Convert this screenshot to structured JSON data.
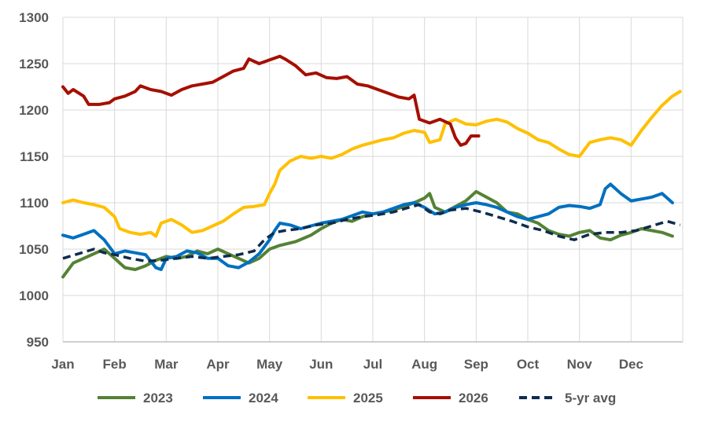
{
  "chart_data": {
    "type": "line",
    "title": "",
    "xlabel": "",
    "ylabel": "",
    "ylim": [
      950,
      1300
    ],
    "yticks": [
      950,
      1000,
      1050,
      1100,
      1150,
      1200,
      1250,
      1300
    ],
    "months": [
      "Jan",
      "Feb",
      "Mar",
      "Apr",
      "May",
      "Jun",
      "Jul",
      "Aug",
      "Sep",
      "Oct",
      "Nov",
      "Dec"
    ],
    "grid": true,
    "legend_position": "bottom",
    "series": [
      {
        "name": "2023",
        "color": "#548235",
        "dash": false,
        "points": [
          [
            0,
            1020
          ],
          [
            0.2,
            1035
          ],
          [
            0.4,
            1040
          ],
          [
            0.6,
            1045
          ],
          [
            0.8,
            1050
          ],
          [
            1.0,
            1040
          ],
          [
            1.2,
            1030
          ],
          [
            1.4,
            1028
          ],
          [
            1.6,
            1032
          ],
          [
            1.8,
            1038
          ],
          [
            2.0,
            1042
          ],
          [
            2.2,
            1040
          ],
          [
            2.4,
            1042
          ],
          [
            2.6,
            1048
          ],
          [
            2.8,
            1045
          ],
          [
            3.0,
            1050
          ],
          [
            3.2,
            1045
          ],
          [
            3.4,
            1040
          ],
          [
            3.6,
            1035
          ],
          [
            3.8,
            1040
          ],
          [
            4.0,
            1050
          ],
          [
            4.2,
            1054
          ],
          [
            4.5,
            1058
          ],
          [
            4.8,
            1065
          ],
          [
            5.0,
            1072
          ],
          [
            5.2,
            1078
          ],
          [
            5.4,
            1082
          ],
          [
            5.6,
            1080
          ],
          [
            5.8,
            1085
          ],
          [
            6.0,
            1088
          ],
          [
            6.2,
            1090
          ],
          [
            6.4,
            1092
          ],
          [
            6.6,
            1096
          ],
          [
            6.8,
            1100
          ],
          [
            7.0,
            1105
          ],
          [
            7.1,
            1110
          ],
          [
            7.2,
            1095
          ],
          [
            7.4,
            1090
          ],
          [
            7.6,
            1096
          ],
          [
            7.8,
            1102
          ],
          [
            8.0,
            1112
          ],
          [
            8.2,
            1106
          ],
          [
            8.4,
            1100
          ],
          [
            8.6,
            1090
          ],
          [
            8.8,
            1088
          ],
          [
            9.0,
            1082
          ],
          [
            9.2,
            1078
          ],
          [
            9.4,
            1070
          ],
          [
            9.6,
            1066
          ],
          [
            9.8,
            1064
          ],
          [
            10.0,
            1068
          ],
          [
            10.2,
            1070
          ],
          [
            10.4,
            1062
          ],
          [
            10.6,
            1060
          ],
          [
            10.8,
            1065
          ],
          [
            11.0,
            1068
          ],
          [
            11.2,
            1072
          ],
          [
            11.4,
            1070
          ],
          [
            11.6,
            1068
          ],
          [
            11.8,
            1064
          ]
        ]
      },
      {
        "name": "2024",
        "color": "#0070C0",
        "dash": false,
        "points": [
          [
            0,
            1065
          ],
          [
            0.2,
            1062
          ],
          [
            0.4,
            1066
          ],
          [
            0.6,
            1070
          ],
          [
            0.8,
            1060
          ],
          [
            1.0,
            1045
          ],
          [
            1.2,
            1048
          ],
          [
            1.4,
            1046
          ],
          [
            1.6,
            1044
          ],
          [
            1.8,
            1030
          ],
          [
            1.9,
            1028
          ],
          [
            2.0,
            1040
          ],
          [
            2.2,
            1042
          ],
          [
            2.4,
            1048
          ],
          [
            2.6,
            1046
          ],
          [
            2.8,
            1040
          ],
          [
            3.0,
            1040
          ],
          [
            3.2,
            1032
          ],
          [
            3.4,
            1030
          ],
          [
            3.6,
            1036
          ],
          [
            3.8,
            1045
          ],
          [
            4.0,
            1060
          ],
          [
            4.1,
            1070
          ],
          [
            4.2,
            1078
          ],
          [
            4.4,
            1076
          ],
          [
            4.6,
            1072
          ],
          [
            4.8,
            1075
          ],
          [
            5.0,
            1078
          ],
          [
            5.2,
            1080
          ],
          [
            5.4,
            1082
          ],
          [
            5.6,
            1086
          ],
          [
            5.8,
            1090
          ],
          [
            6.0,
            1088
          ],
          [
            6.2,
            1090
          ],
          [
            6.4,
            1094
          ],
          [
            6.6,
            1098
          ],
          [
            6.8,
            1100
          ],
          [
            7.0,
            1095
          ],
          [
            7.2,
            1088
          ],
          [
            7.4,
            1090
          ],
          [
            7.6,
            1095
          ],
          [
            7.8,
            1098
          ],
          [
            8.0,
            1100
          ],
          [
            8.2,
            1098
          ],
          [
            8.4,
            1095
          ],
          [
            8.6,
            1090
          ],
          [
            8.8,
            1085
          ],
          [
            9.0,
            1082
          ],
          [
            9.2,
            1085
          ],
          [
            9.4,
            1088
          ],
          [
            9.6,
            1095
          ],
          [
            9.8,
            1097
          ],
          [
            10.0,
            1096
          ],
          [
            10.2,
            1094
          ],
          [
            10.4,
            1098
          ],
          [
            10.5,
            1115
          ],
          [
            10.6,
            1120
          ],
          [
            10.8,
            1110
          ],
          [
            11.0,
            1102
          ],
          [
            11.2,
            1104
          ],
          [
            11.4,
            1106
          ],
          [
            11.6,
            1110
          ],
          [
            11.8,
            1100
          ]
        ]
      },
      {
        "name": "2025",
        "color": "#FFC000",
        "dash": false,
        "points": [
          [
            0,
            1100
          ],
          [
            0.2,
            1103
          ],
          [
            0.4,
            1100
          ],
          [
            0.6,
            1098
          ],
          [
            0.8,
            1095
          ],
          [
            1.0,
            1085
          ],
          [
            1.1,
            1072
          ],
          [
            1.3,
            1068
          ],
          [
            1.5,
            1066
          ],
          [
            1.7,
            1068
          ],
          [
            1.8,
            1064
          ],
          [
            1.9,
            1078
          ],
          [
            2.1,
            1082
          ],
          [
            2.3,
            1076
          ],
          [
            2.5,
            1068
          ],
          [
            2.7,
            1070
          ],
          [
            2.9,
            1075
          ],
          [
            3.1,
            1080
          ],
          [
            3.3,
            1088
          ],
          [
            3.5,
            1095
          ],
          [
            3.7,
            1096
          ],
          [
            3.9,
            1098
          ],
          [
            4.0,
            1110
          ],
          [
            4.1,
            1120
          ],
          [
            4.2,
            1135
          ],
          [
            4.4,
            1145
          ],
          [
            4.6,
            1150
          ],
          [
            4.8,
            1148
          ],
          [
            5.0,
            1150
          ],
          [
            5.2,
            1148
          ],
          [
            5.4,
            1152
          ],
          [
            5.6,
            1158
          ],
          [
            5.8,
            1162
          ],
          [
            6.0,
            1165
          ],
          [
            6.2,
            1168
          ],
          [
            6.4,
            1170
          ],
          [
            6.6,
            1175
          ],
          [
            6.8,
            1178
          ],
          [
            7.0,
            1176
          ],
          [
            7.1,
            1165
          ],
          [
            7.3,
            1168
          ],
          [
            7.4,
            1185
          ],
          [
            7.6,
            1190
          ],
          [
            7.8,
            1185
          ],
          [
            8.0,
            1184
          ],
          [
            8.2,
            1188
          ],
          [
            8.4,
            1190
          ],
          [
            8.6,
            1187
          ],
          [
            8.8,
            1180
          ],
          [
            9.0,
            1175
          ],
          [
            9.2,
            1168
          ],
          [
            9.4,
            1165
          ],
          [
            9.6,
            1158
          ],
          [
            9.8,
            1152
          ],
          [
            10.0,
            1150
          ],
          [
            10.2,
            1165
          ],
          [
            10.4,
            1168
          ],
          [
            10.6,
            1170
          ],
          [
            10.8,
            1168
          ],
          [
            11.0,
            1162
          ],
          [
            11.2,
            1178
          ],
          [
            11.4,
            1192
          ],
          [
            11.6,
            1205
          ],
          [
            11.8,
            1215
          ],
          [
            11.95,
            1220
          ]
        ]
      },
      {
        "name": "2026",
        "color": "#A50F00",
        "dash": false,
        "points": [
          [
            0,
            1225
          ],
          [
            0.1,
            1218
          ],
          [
            0.2,
            1222
          ],
          [
            0.4,
            1215
          ],
          [
            0.5,
            1206
          ],
          [
            0.7,
            1206
          ],
          [
            0.9,
            1208
          ],
          [
            1.0,
            1212
          ],
          [
            1.2,
            1215
          ],
          [
            1.4,
            1220
          ],
          [
            1.5,
            1226
          ],
          [
            1.7,
            1222
          ],
          [
            1.9,
            1220
          ],
          [
            2.1,
            1216
          ],
          [
            2.3,
            1222
          ],
          [
            2.5,
            1226
          ],
          [
            2.7,
            1228
          ],
          [
            2.9,
            1230
          ],
          [
            3.1,
            1236
          ],
          [
            3.3,
            1242
          ],
          [
            3.5,
            1245
          ],
          [
            3.6,
            1255
          ],
          [
            3.8,
            1250
          ],
          [
            4.0,
            1254
          ],
          [
            4.2,
            1258
          ],
          [
            4.3,
            1255
          ],
          [
            4.5,
            1248
          ],
          [
            4.7,
            1238
          ],
          [
            4.9,
            1240
          ],
          [
            5.1,
            1235
          ],
          [
            5.3,
            1234
          ],
          [
            5.5,
            1236
          ],
          [
            5.7,
            1228
          ],
          [
            5.9,
            1226
          ],
          [
            6.1,
            1222
          ],
          [
            6.3,
            1218
          ],
          [
            6.5,
            1214
          ],
          [
            6.7,
            1212
          ],
          [
            6.8,
            1216
          ],
          [
            6.9,
            1190
          ],
          [
            7.1,
            1186
          ],
          [
            7.3,
            1190
          ],
          [
            7.5,
            1185
          ],
          [
            7.6,
            1170
          ],
          [
            7.7,
            1162
          ],
          [
            7.8,
            1164
          ],
          [
            7.9,
            1172
          ],
          [
            8.05,
            1172
          ]
        ]
      },
      {
        "name": "5-yr avg",
        "color": "#0F2C4E",
        "dash": true,
        "points": [
          [
            0,
            1040
          ],
          [
            0.3,
            1045
          ],
          [
            0.6,
            1050
          ],
          [
            0.8,
            1046
          ],
          [
            1.0,
            1044
          ],
          [
            1.3,
            1040
          ],
          [
            1.6,
            1037
          ],
          [
            1.9,
            1038
          ],
          [
            2.2,
            1040
          ],
          [
            2.5,
            1042
          ],
          [
            2.8,
            1040
          ],
          [
            3.1,
            1042
          ],
          [
            3.4,
            1044
          ],
          [
            3.7,
            1048
          ],
          [
            3.9,
            1060
          ],
          [
            4.1,
            1068
          ],
          [
            4.3,
            1070
          ],
          [
            4.6,
            1072
          ],
          [
            4.9,
            1076
          ],
          [
            5.2,
            1078
          ],
          [
            5.5,
            1082
          ],
          [
            5.8,
            1085
          ],
          [
            6.1,
            1087
          ],
          [
            6.4,
            1090
          ],
          [
            6.7,
            1095
          ],
          [
            6.9,
            1098
          ],
          [
            7.1,
            1090
          ],
          [
            7.3,
            1088
          ],
          [
            7.5,
            1092
          ],
          [
            7.8,
            1094
          ],
          [
            8.1,
            1090
          ],
          [
            8.4,
            1085
          ],
          [
            8.7,
            1080
          ],
          [
            9.0,
            1074
          ],
          [
            9.3,
            1070
          ],
          [
            9.6,
            1064
          ],
          [
            9.9,
            1060
          ],
          [
            10.2,
            1066
          ],
          [
            10.5,
            1068
          ],
          [
            10.8,
            1068
          ],
          [
            11.1,
            1070
          ],
          [
            11.4,
            1075
          ],
          [
            11.7,
            1080
          ],
          [
            11.95,
            1076
          ]
        ]
      }
    ]
  }
}
